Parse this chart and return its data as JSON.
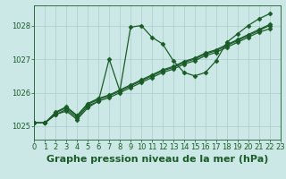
{
  "title": "Graphe pression niveau de la mer (hPa)",
  "bg_color": "#cce8e6",
  "grid_color": "#aacfcc",
  "line_color": "#1a5c28",
  "xlim": [
    0,
    23
  ],
  "ylim": [
    1024.6,
    1028.6
  ],
  "yticks": [
    1025,
    1026,
    1027,
    1028
  ],
  "xticks": [
    0,
    1,
    2,
    3,
    4,
    5,
    6,
    7,
    8,
    9,
    10,
    11,
    12,
    13,
    14,
    15,
    16,
    17,
    18,
    19,
    20,
    21,
    22,
    23
  ],
  "series_main": [
    1025.1,
    1025.1,
    1025.35,
    1025.45,
    1025.2,
    1025.55,
    1025.75,
    1027.0,
    1026.05,
    1027.95,
    1028.0,
    1027.65,
    1027.45,
    1026.95,
    1026.6,
    1026.5,
    1026.6,
    1026.95,
    1027.5,
    1027.75,
    1028.0,
    1028.2,
    1028.35
  ],
  "series_smooth1": [
    1025.1,
    1025.1,
    1025.35,
    1025.5,
    1025.25,
    1025.6,
    1025.75,
    1025.85,
    1026.0,
    1026.15,
    1026.3,
    1026.45,
    1026.6,
    1026.7,
    1026.85,
    1026.95,
    1027.1,
    1027.2,
    1027.35,
    1027.5,
    1027.65,
    1027.8,
    1027.9
  ],
  "series_smooth2": [
    1025.1,
    1025.1,
    1025.4,
    1025.55,
    1025.3,
    1025.65,
    1025.8,
    1025.9,
    1026.05,
    1026.2,
    1026.35,
    1026.5,
    1026.65,
    1026.75,
    1026.9,
    1027.0,
    1027.15,
    1027.25,
    1027.4,
    1027.55,
    1027.7,
    1027.85,
    1028.0
  ],
  "series_smooth3": [
    1025.1,
    1025.1,
    1025.42,
    1025.58,
    1025.32,
    1025.68,
    1025.83,
    1025.93,
    1026.08,
    1026.23,
    1026.38,
    1026.53,
    1026.68,
    1026.78,
    1026.93,
    1027.03,
    1027.18,
    1027.28,
    1027.43,
    1027.58,
    1027.73,
    1027.88,
    1028.03
  ],
  "marker": "D",
  "markersize": 2.5,
  "linewidth": 0.9,
  "title_fontsize": 8,
  "tick_fontsize": 6
}
